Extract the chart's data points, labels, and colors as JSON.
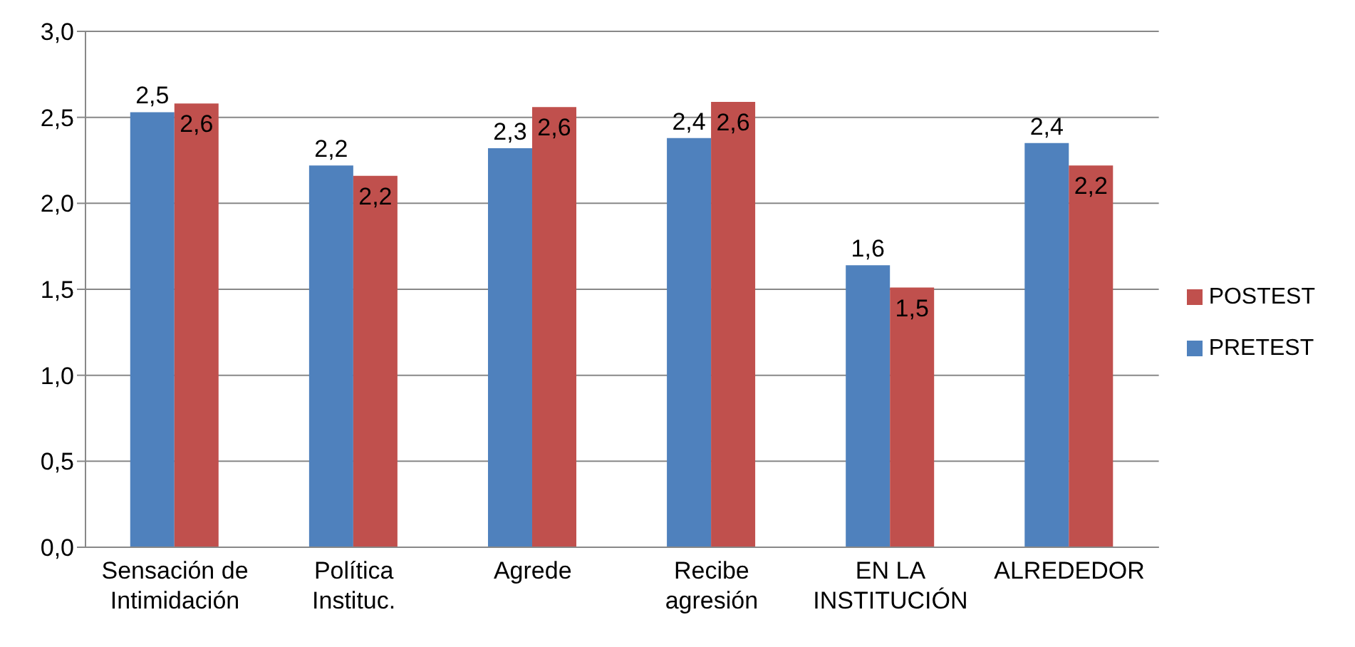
{
  "chart_data": {
    "type": "bar",
    "categories": [
      "Sensación de Intimidación",
      "Política Instituc.",
      "Agrede",
      "Recibe agresión",
      "EN LA INSTITUCIÓN",
      "ALREDEDOR"
    ],
    "series": [
      {
        "name": "PRETEST",
        "color": "#4f81bd",
        "values": [
          2.53,
          2.22,
          2.32,
          2.38,
          1.64,
          2.35
        ],
        "value_labels": [
          "2,5",
          "2,2",
          "2,3",
          "2,4",
          "1,6",
          "2,4"
        ]
      },
      {
        "name": "POSTEST",
        "color": "#c0504d",
        "values": [
          2.58,
          2.16,
          2.56,
          2.59,
          1.51,
          2.22
        ],
        "value_labels": [
          "2,6",
          "2,2",
          "2,6",
          "2,6",
          "1,5",
          "2,2"
        ]
      }
    ],
    "ylim": [
      0,
      3
    ],
    "yticks": [
      {
        "value": 0,
        "label": "0,0"
      },
      {
        "value": 0.5,
        "label": "0,5"
      },
      {
        "value": 1,
        "label": "1,0"
      },
      {
        "value": 1.5,
        "label": "1,5"
      },
      {
        "value": 2,
        "label": "2,0"
      },
      {
        "value": 2.5,
        "label": "2,5"
      },
      {
        "value": 3,
        "label": "3,0"
      }
    ],
    "grid": "y",
    "legend": "right"
  }
}
